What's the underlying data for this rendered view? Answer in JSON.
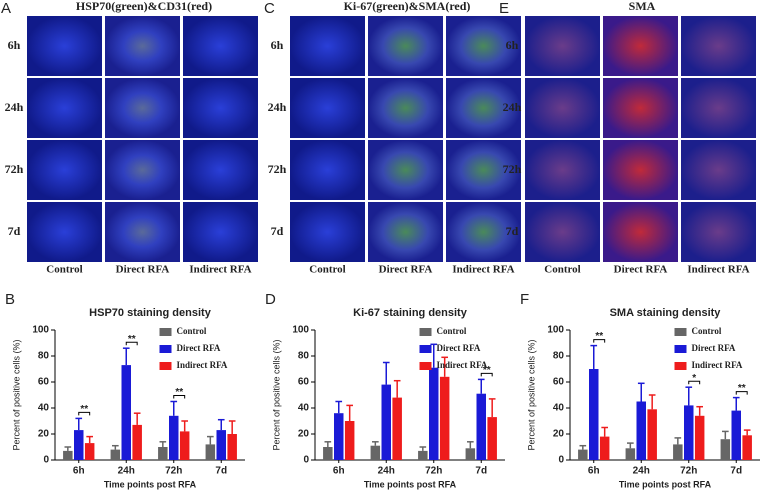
{
  "image_panels": [
    {
      "letter": "A",
      "title": "HSP70(green)&CD31(red)",
      "rows": [
        "6h",
        "24h",
        "72h",
        "7d"
      ],
      "columns": [
        "Control",
        "Direct RFA",
        "Indirect RFA"
      ]
    },
    {
      "letter": "C",
      "title": "Ki-67(green)&SMA(red)",
      "rows": [
        "6h",
        "24h",
        "72h",
        "7d"
      ],
      "columns": [
        "Control",
        "Direct RFA",
        "Indirect RFA"
      ]
    },
    {
      "letter": "E",
      "title": "SMA",
      "rows": [
        "6h",
        "24h",
        "72h",
        "7d"
      ],
      "columns": [
        "Control",
        "Direct RFA",
        "Indirect RFA"
      ]
    }
  ],
  "chart_data": [
    {
      "type": "bar",
      "letter": "B",
      "title": "HSP70 staining density",
      "x_label": "Time points post RFA",
      "y_label": "Percent of positive cells (%)",
      "categories": [
        "6h",
        "24h",
        "72h",
        "7d"
      ],
      "ylim": [
        0,
        100
      ],
      "yticks": [
        0,
        20,
        40,
        60,
        80,
        100
      ],
      "legend": "upper right",
      "series": [
        {
          "name": "Control",
          "color": "#666666",
          "values": [
            7,
            8,
            10,
            12
          ],
          "errors": [
            3,
            3,
            4,
            6
          ]
        },
        {
          "name": "Direct RFA",
          "color": "#1a1ad6",
          "values": [
            23,
            73,
            34,
            23
          ],
          "errors": [
            9,
            13,
            11,
            8
          ]
        },
        {
          "name": "Indirect RFA",
          "color": "#ee1c1c",
          "values": [
            13,
            27,
            22,
            20
          ],
          "errors": [
            5,
            9,
            8,
            10
          ]
        }
      ],
      "annotations": [
        {
          "text": "**",
          "at": "6h"
        },
        {
          "text": "**",
          "at": "24h"
        },
        {
          "text": "**",
          "at": "72h"
        }
      ]
    },
    {
      "type": "bar",
      "letter": "D",
      "title": "Ki-67 staining density",
      "x_label": "Time points post RFA",
      "y_label": "Percent of positive cells (%)",
      "categories": [
        "6h",
        "24h",
        "72h",
        "7d"
      ],
      "ylim": [
        0,
        100
      ],
      "yticks": [
        0,
        20,
        40,
        60,
        80,
        100
      ],
      "legend": "upper right",
      "series": [
        {
          "name": "Control",
          "color": "#666666",
          "values": [
            10,
            11,
            7,
            9
          ],
          "errors": [
            4,
            3,
            3,
            5
          ]
        },
        {
          "name": "Direct RFA",
          "color": "#1a1ad6",
          "values": [
            36,
            58,
            71,
            51
          ],
          "errors": [
            9,
            17,
            18,
            11
          ]
        },
        {
          "name": "Indirect RFA",
          "color": "#ee1c1c",
          "values": [
            30,
            48,
            64,
            33
          ],
          "errors": [
            12,
            13,
            15,
            14
          ]
        }
      ],
      "annotations": [
        {
          "text": "**",
          "at": "7d"
        }
      ]
    },
    {
      "type": "bar",
      "letter": "F",
      "title": "SMA staining density",
      "x_label": "Time points post RFA",
      "y_label": "Percent of positive cells (%)",
      "categories": [
        "6h",
        "24h",
        "72h",
        "7d"
      ],
      "ylim": [
        0,
        100
      ],
      "yticks": [
        0,
        20,
        40,
        60,
        80,
        100
      ],
      "legend": "upper right",
      "series": [
        {
          "name": "Control",
          "color": "#666666",
          "values": [
            8,
            9,
            12,
            16
          ],
          "errors": [
            3,
            4,
            5,
            6
          ]
        },
        {
          "name": "Direct RFA",
          "color": "#1a1ad6",
          "values": [
            70,
            45,
            42,
            38
          ],
          "errors": [
            18,
            14,
            14,
            10
          ]
        },
        {
          "name": "Indirect RFA",
          "color": "#ee1c1c",
          "values": [
            18,
            39,
            34,
            19
          ],
          "errors": [
            7,
            11,
            7,
            4
          ]
        }
      ],
      "annotations": [
        {
          "text": "**",
          "at": "6h"
        },
        {
          "text": "*",
          "at": "72h"
        },
        {
          "text": "**",
          "at": "7d"
        }
      ]
    }
  ]
}
